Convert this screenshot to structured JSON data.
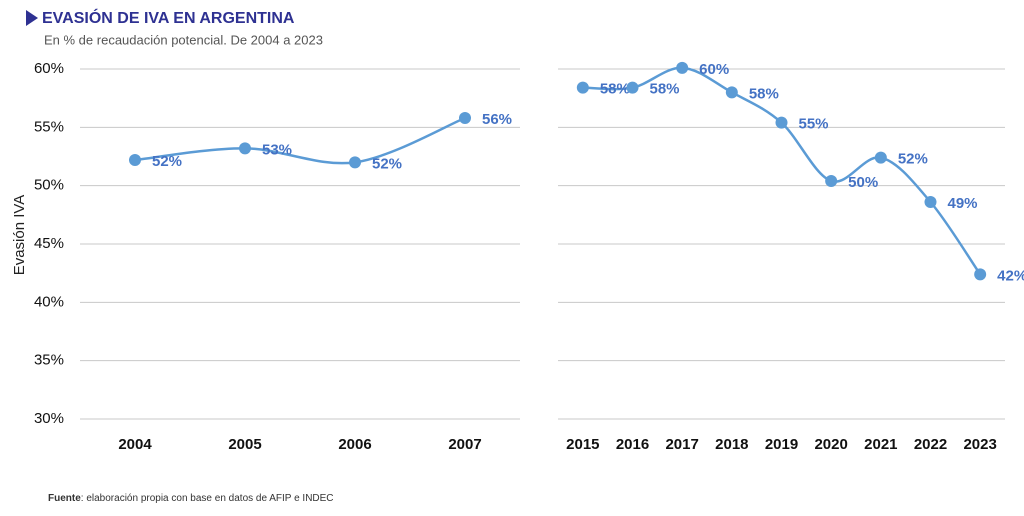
{
  "header": {
    "title": "EVASIÓN DE IVA EN ARGENTINA",
    "subtitle": "En % de recaudación potencial. De 2004 a 2023",
    "y_label": "Evasión IVA"
  },
  "source": {
    "label": "Fuente",
    "text": ": elaboración propia con base en datos de AFIP e INDEC"
  },
  "chart_data": [
    {
      "type": "line",
      "categories": [
        "2004",
        "2005",
        "2006",
        "2007"
      ],
      "values": [
        52.2,
        53.2,
        52.0,
        55.8
      ],
      "value_labels": [
        "52%",
        "53%",
        "52%",
        "56%"
      ],
      "color": "#5b9bd5",
      "ylim": [
        30,
        60
      ],
      "yticks": [
        {
          "value": 30,
          "label": "30%"
        },
        {
          "value": 35,
          "label": "35%"
        },
        {
          "value": 40,
          "label": "40%"
        },
        {
          "value": 45,
          "label": "45%"
        },
        {
          "value": 50,
          "label": "50%"
        },
        {
          "value": 55,
          "label": "55%"
        },
        {
          "value": 60,
          "label": "60%"
        }
      ],
      "grid": true
    },
    {
      "type": "line",
      "categories": [
        "2015",
        "2016",
        "2017",
        "2018",
        "2019",
        "2020",
        "2021",
        "2022",
        "2023"
      ],
      "values": [
        58.4,
        58.4,
        60.1,
        58.0,
        55.4,
        50.4,
        52.4,
        48.6,
        42.4
      ],
      "value_labels": [
        "58%",
        "58%",
        "60%",
        "58%",
        "55%",
        "50%",
        "52%",
        "49%",
        "42%"
      ],
      "color": "#5b9bd5",
      "grid": true
    }
  ]
}
